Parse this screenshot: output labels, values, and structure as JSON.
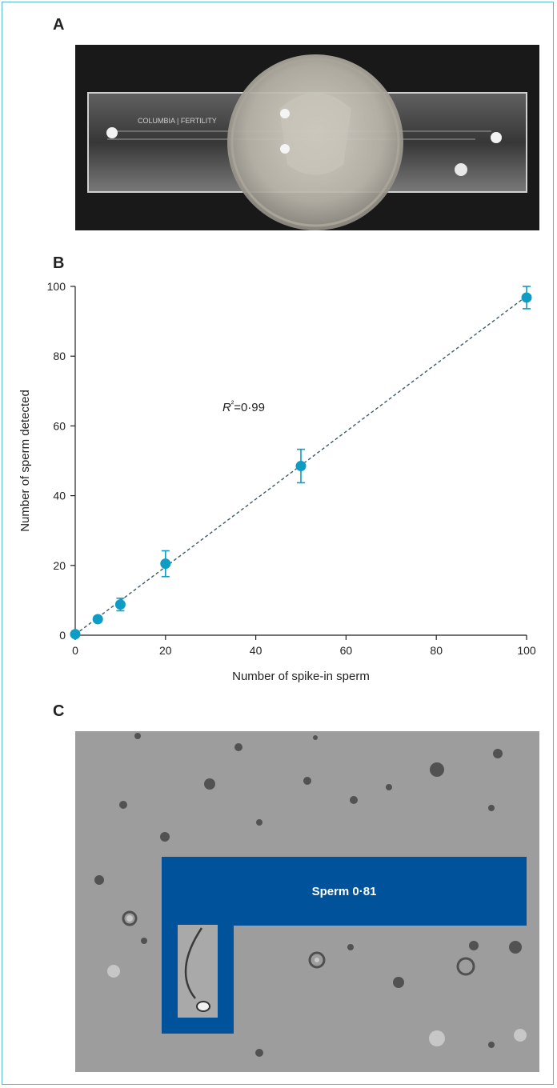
{
  "panels": {
    "a_label": "A",
    "b_label": "B",
    "c_label": "C"
  },
  "photo_a": {
    "brand_text": "COLUMBIA | FERTILITY"
  },
  "photo_c": {
    "detection_label": "Sperm 0·81"
  },
  "chart_data": {
    "type": "scatter",
    "title": "",
    "xlabel": "Number of spike-in sperm",
    "ylabel": "Number of sperm detected",
    "xlim": [
      0,
      100
    ],
    "ylim": [
      0,
      100
    ],
    "xticks": [
      0,
      20,
      40,
      60,
      80,
      100
    ],
    "yticks": [
      0,
      20,
      40,
      60,
      80,
      100
    ],
    "grid": false,
    "annotation": "R²=0·99",
    "trendline": "dashed linear fit",
    "points": [
      {
        "x": 0,
        "y": 0.3,
        "err": 0
      },
      {
        "x": 5,
        "y": 4.6,
        "err": 0
      },
      {
        "x": 10,
        "y": 8.8,
        "err": 1.8
      },
      {
        "x": 20,
        "y": 20.5,
        "err": 3.7
      },
      {
        "x": 50,
        "y": 48.5,
        "err": 4.8
      },
      {
        "x": 100,
        "y": 96.8,
        "err": 3.2
      }
    ],
    "fit": {
      "x": [
        0,
        100
      ],
      "y": [
        0.2,
        97.2
      ]
    },
    "colors": {
      "points": "#0e9bc4",
      "trend": "#3d5a66",
      "axis": "#222222"
    }
  }
}
